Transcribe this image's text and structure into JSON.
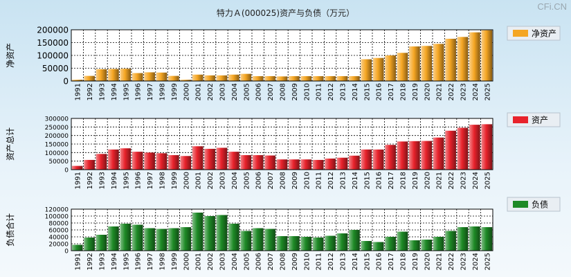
{
  "title": "特力Ａ(000025)资产与负债（万元）",
  "watermark": "CFi.CN",
  "colors": {
    "net_assets": "#f5a623",
    "assets": "#e8222b",
    "liabilities": "#1e8a26"
  },
  "chart_data": [
    {
      "type": "bar",
      "title": "特力Ａ(000025)资产与负债（万元）",
      "ylabel": "净资产",
      "legend": "净资产",
      "legend_position": "top-right",
      "color_key": "net_assets",
      "ylim": [
        0,
        200000
      ],
      "yticks": [
        0,
        50000,
        100000,
        150000,
        200000
      ],
      "categories": [
        "1991",
        "1992",
        "1993",
        "1994",
        "1995",
        "1996",
        "1997",
        "1998",
        "1999",
        "2000",
        "2001",
        "2002",
        "2003",
        "2004",
        "2005",
        "2006",
        "2007",
        "2008",
        "2009",
        "2010",
        "2011",
        "2012",
        "2013",
        "2014",
        "2015",
        "2016",
        "2017",
        "2018",
        "2019",
        "2020",
        "2021",
        "2022",
        "2023",
        "2024",
        "2025"
      ],
      "values": [
        5000,
        20000,
        46000,
        47000,
        48000,
        31000,
        34000,
        33000,
        20000,
        5000,
        25000,
        22000,
        22000,
        25000,
        28000,
        19000,
        19000,
        18000,
        19000,
        19000,
        19000,
        19000,
        19000,
        19000,
        85000,
        90000,
        100000,
        110000,
        135000,
        137000,
        145000,
        165000,
        172000,
        190000,
        198000
      ]
    },
    {
      "type": "bar",
      "ylabel": "资产总计",
      "legend": "资产",
      "legend_position": "top-right",
      "color_key": "assets",
      "ylim": [
        0,
        300000
      ],
      "yticks": [
        0,
        50000,
        100000,
        150000,
        200000,
        250000,
        300000
      ],
      "categories": [
        "1991",
        "1992",
        "1993",
        "1994",
        "1995",
        "1996",
        "1997",
        "1998",
        "1999",
        "2000",
        "2001",
        "2002",
        "2003",
        "2004",
        "2005",
        "2006",
        "2007",
        "2008",
        "2009",
        "2010",
        "2011",
        "2012",
        "2013",
        "2014",
        "2015",
        "2016",
        "2017",
        "2018",
        "2019",
        "2020",
        "2021",
        "2022",
        "2023",
        "2024",
        "2025"
      ],
      "values": [
        22000,
        57000,
        92000,
        118000,
        125000,
        105000,
        100000,
        96000,
        85000,
        80000,
        137000,
        122000,
        128000,
        105000,
        85000,
        85000,
        83000,
        60000,
        60000,
        60000,
        57000,
        65000,
        70000,
        82000,
        118000,
        118000,
        145000,
        165000,
        167000,
        168000,
        188000,
        228000,
        245000,
        263000,
        266000
      ]
    },
    {
      "type": "bar",
      "ylabel": "负债合计",
      "legend": "负债",
      "legend_position": "top-right",
      "color_key": "liabilities",
      "ylim": [
        0,
        120000
      ],
      "yticks": [
        0,
        20000,
        40000,
        60000,
        80000,
        100000,
        120000
      ],
      "categories": [
        "1991",
        "1992",
        "1993",
        "1994",
        "1995",
        "1996",
        "1997",
        "1998",
        "1999",
        "2000",
        "2001",
        "2002",
        "2003",
        "2004",
        "2005",
        "2006",
        "2007",
        "2008",
        "2009",
        "2010",
        "2011",
        "2012",
        "2013",
        "2014",
        "2015",
        "2016",
        "2017",
        "2018",
        "2019",
        "2020",
        "2021",
        "2022",
        "2023",
        "2024",
        "2025"
      ],
      "values": [
        17000,
        38000,
        46000,
        70000,
        78000,
        75000,
        65000,
        63000,
        65000,
        68000,
        110000,
        100000,
        103000,
        78000,
        57000,
        65000,
        63000,
        42000,
        42000,
        40000,
        38000,
        43000,
        50000,
        60000,
        28000,
        25000,
        40000,
        55000,
        30000,
        32000,
        40000,
        57000,
        68000,
        70000,
        68000
      ]
    }
  ]
}
